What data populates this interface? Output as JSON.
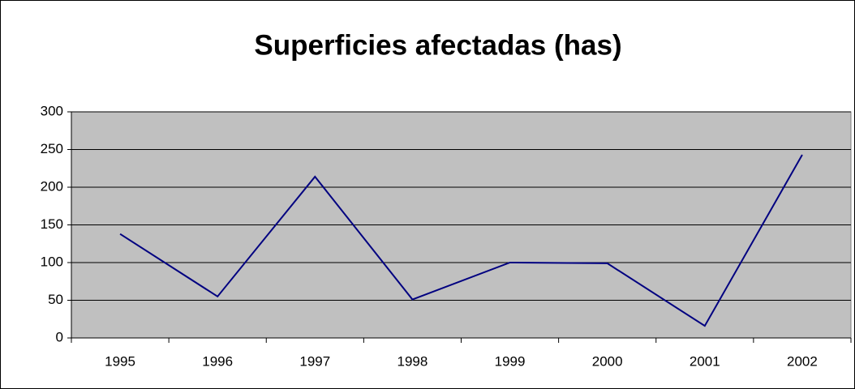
{
  "chart_data": {
    "type": "line",
    "title": "Superficies afectadas (has)",
    "categories": [
      "1995",
      "1996",
      "1997",
      "1998",
      "1999",
      "2000",
      "2001",
      "2002"
    ],
    "values": [
      138,
      55,
      214,
      51,
      100,
      99,
      16,
      243
    ],
    "color": "#000080",
    "ylim": [
      0,
      300
    ],
    "yticks": [
      0,
      50,
      100,
      150,
      200,
      250,
      300
    ],
    "grid": true
  }
}
